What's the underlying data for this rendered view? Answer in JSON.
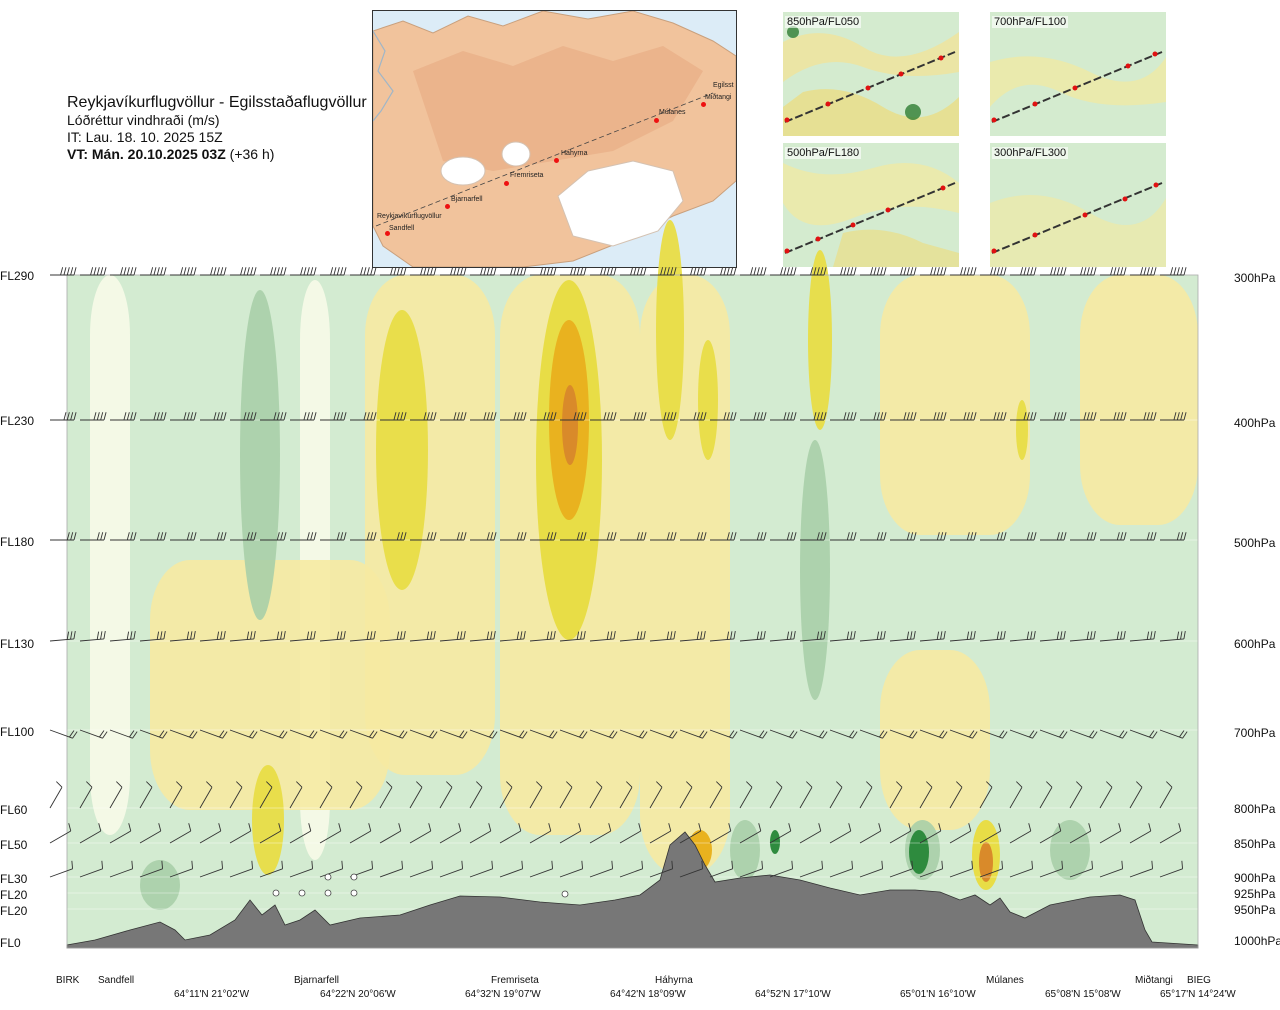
{
  "header": {
    "route": "Reykjavíkurflugvöllur - Egilsstaðaflugvöllur",
    "variable": "Lóðréttur vindhraði (m/s)",
    "issue_time": "IT: Lau. 18. 10. 2025 15Z",
    "valid_time_prefix": "VT: Mán. 20.10.2025 03Z",
    "valid_time_suffix": " (+36 h)"
  },
  "map": {
    "stations": [
      "Reykjavíkurflugvöllur",
      "Sandfell",
      "Bjarnarfell",
      "Fremriseta",
      "Háhyrna",
      "Múlanes",
      "Miðtangi",
      "Egilsst"
    ]
  },
  "thumbnails": [
    {
      "label": "850hPa/FL050"
    },
    {
      "label": "700hPa/FL100"
    },
    {
      "label": "500hPa/FL180"
    },
    {
      "label": "300hPa/FL300"
    }
  ],
  "chart_data": {
    "type": "heatmap",
    "title": "Reykjavíkurflugvöllur - Egilsstaðaflugvöllur",
    "quantity": "Lóðréttur vindhraði (m/s)",
    "left_axis": [
      "FL290",
      "FL230",
      "FL180",
      "FL130",
      "FL100",
      "FL60",
      "FL50",
      "FL30",
      "FL20",
      "FL20",
      "FL0"
    ],
    "right_axis": [
      "300hPa",
      "400hPa",
      "500hPa",
      "600hPa",
      "700hPa",
      "800hPa",
      "850hPa",
      "900hPa",
      "925hPa",
      "950hPa",
      "1000hPa"
    ],
    "pressure_levels_hpa": [
      300,
      400,
      500,
      600,
      700,
      800,
      850,
      900,
      925,
      950,
      1000
    ],
    "x_stations": [
      "BIRK",
      "Sandfell",
      "Bjarnarfell",
      "Fremriseta",
      "Háhyrna",
      "Múlanes",
      "Miðtangi",
      "BIEG"
    ],
    "x_coordinates": [
      "64°11'N 21°02'W",
      "64°22'N 20°06'W",
      "64°32'N 19°07'W",
      "64°42'N 18°09'W",
      "64°52'N 17°10'W",
      "65°01'N 16°10'W",
      "65°08'N 15°08'W",
      "65°17'N 14°24'W"
    ],
    "colors": {
      "strong_down": "#2e8b3e",
      "down": "#a8cfa8",
      "weak_down": "#d3ebd1",
      "neutral": "#f7fbe8",
      "weak_up": "#f6eaa2",
      "up": "#e8dd46",
      "strong_up": "#e9b21f",
      "very_strong_up": "#d98a2a",
      "terrain": "#777777"
    }
  }
}
